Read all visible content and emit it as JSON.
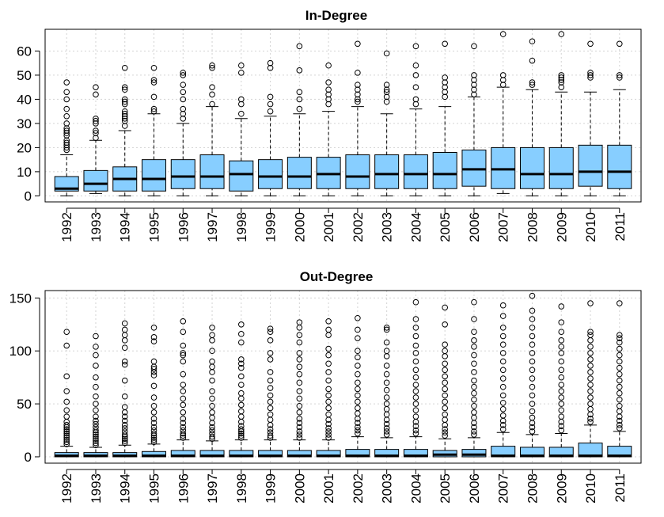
{
  "chart_data": [
    {
      "type": "box",
      "title": "In-Degree",
      "xlabel": "",
      "ylabel": "",
      "categories": [
        "1992",
        "1993",
        "1994",
        "1995",
        "1996",
        "1997",
        "1998",
        "1999",
        "2000",
        "2001",
        "2002",
        "2003",
        "2004",
        "2005",
        "2006",
        "2007",
        "2008",
        "2009",
        "2010",
        "2011"
      ],
      "yticks": [
        0,
        10,
        20,
        30,
        40,
        50,
        60
      ],
      "ylim": [
        -2.5,
        69
      ],
      "grid": true,
      "fill_color": "#87ceff",
      "boxes": [
        {
          "min": 0,
          "q1": 2,
          "median": 3,
          "q3": 8,
          "max": 17,
          "outliers": [
            19,
            20,
            21,
            22,
            23,
            25,
            26,
            27,
            28,
            30,
            33,
            36,
            40,
            43,
            47
          ]
        },
        {
          "min": 1,
          "q1": 2,
          "median": 5,
          "q3": 10.5,
          "max": 23,
          "outliers": [
            24,
            26,
            27,
            30,
            31,
            32,
            42,
            45
          ]
        },
        {
          "min": 0,
          "q1": 2,
          "median": 7,
          "q3": 12,
          "max": 27,
          "outliers": [
            29,
            31,
            32,
            33,
            34,
            35,
            38,
            39,
            40,
            44,
            45,
            53
          ]
        },
        {
          "min": 0,
          "q1": 2,
          "median": 7,
          "q3": 15,
          "max": 34,
          "outliers": [
            35,
            36,
            41,
            47,
            48,
            53
          ]
        },
        {
          "min": 0,
          "q1": 3,
          "median": 8,
          "q3": 15,
          "max": 30,
          "outliers": [
            32,
            34,
            36,
            40,
            43,
            46,
            50,
            51
          ]
        },
        {
          "min": 0,
          "q1": 3,
          "median": 8,
          "q3": 17,
          "max": 37,
          "outliers": [
            38,
            42,
            45,
            53,
            54
          ]
        },
        {
          "min": 0,
          "q1": 2,
          "median": 9,
          "q3": 14.5,
          "max": 32,
          "outliers": [
            34,
            38,
            40,
            51,
            54
          ]
        },
        {
          "min": 0,
          "q1": 3,
          "median": 8,
          "q3": 15,
          "max": 33,
          "outliers": [
            35,
            38,
            41,
            53,
            55
          ]
        },
        {
          "min": 0,
          "q1": 3,
          "median": 8,
          "q3": 16,
          "max": 34,
          "outliers": [
            36,
            40,
            43,
            52,
            62
          ]
        },
        {
          "min": 0,
          "q1": 3,
          "median": 9,
          "q3": 16,
          "max": 35,
          "outliers": [
            38,
            40,
            42,
            44,
            47,
            54
          ]
        },
        {
          "min": 0,
          "q1": 3,
          "median": 8,
          "q3": 17,
          "max": 37,
          "outliers": [
            39,
            40,
            42,
            44,
            46,
            51,
            63
          ]
        },
        {
          "min": 0,
          "q1": 3,
          "median": 9,
          "q3": 17,
          "max": 34,
          "outliers": [
            39,
            41,
            43,
            44,
            46,
            59
          ]
        },
        {
          "min": 0,
          "q1": 3,
          "median": 9,
          "q3": 17,
          "max": 36,
          "outliers": [
            38,
            40,
            45,
            50,
            54,
            62
          ]
        },
        {
          "min": 0,
          "q1": 3,
          "median": 9,
          "q3": 18,
          "max": 37,
          "outliers": [
            41,
            43,
            45,
            47,
            49,
            63
          ]
        },
        {
          "min": 0,
          "q1": 4,
          "median": 11,
          "q3": 19,
          "max": 41,
          "outliers": [
            42,
            44,
            46,
            48,
            50,
            62
          ]
        },
        {
          "min": 1,
          "q1": 3,
          "median": 11,
          "q3": 20,
          "max": 45,
          "outliers": [
            46,
            48,
            50,
            67
          ]
        },
        {
          "min": 0,
          "q1": 3,
          "median": 9,
          "q3": 20,
          "max": 44,
          "outliers": [
            46,
            47,
            56,
            64
          ]
        },
        {
          "min": 0,
          "q1": 3,
          "median": 9,
          "q3": 20,
          "max": 43,
          "outliers": [
            45,
            47,
            48,
            49,
            50,
            67
          ]
        },
        {
          "min": 0,
          "q1": 4,
          "median": 10,
          "q3": 21,
          "max": 43,
          "outliers": [
            49,
            50,
            51,
            63
          ]
        },
        {
          "min": 0,
          "q1": 3,
          "median": 10,
          "q3": 21,
          "max": 44,
          "outliers": [
            49,
            50,
            63
          ]
        }
      ]
    },
    {
      "type": "box",
      "title": "Out-Degree",
      "xlabel": "",
      "ylabel": "",
      "categories": [
        "1992",
        "1993",
        "1994",
        "1995",
        "1996",
        "1997",
        "1998",
        "1999",
        "2000",
        "2001",
        "2002",
        "2003",
        "2004",
        "2005",
        "2006",
        "2007",
        "2008",
        "2009",
        "2010",
        "2011"
      ],
      "yticks": [
        0,
        50,
        100,
        150
      ],
      "ylim": [
        -6,
        157
      ],
      "grid": true,
      "fill_color": "#87ceff",
      "boxes": [
        {
          "min": 0,
          "q1": 0,
          "median": 1,
          "q3": 4,
          "max": 10,
          "outliers": [
            12,
            14,
            16,
            18,
            20,
            22,
            24,
            26,
            28,
            30,
            33,
            38,
            44,
            52,
            62,
            76,
            105,
            118
          ]
        },
        {
          "min": 0,
          "q1": 0,
          "median": 1,
          "q3": 4,
          "max": 9,
          "outliers": [
            11,
            13,
            15,
            17,
            19,
            21,
            23,
            25,
            28,
            31,
            34,
            38,
            44,
            50,
            57,
            66,
            75,
            86,
            96,
            104,
            114
          ]
        },
        {
          "min": 0,
          "q1": 0,
          "median": 1,
          "q3": 4,
          "max": 11,
          "outliers": [
            13,
            15,
            17,
            19,
            21,
            24,
            27,
            30,
            34,
            38,
            42,
            47,
            57,
            72,
            87,
            90,
            103,
            110,
            115,
            120,
            126
          ]
        },
        {
          "min": 0,
          "q1": 0,
          "median": 1,
          "q3": 5,
          "max": 12,
          "outliers": [
            14,
            16,
            18,
            20,
            22,
            25,
            28,
            32,
            36,
            42,
            48,
            56,
            67,
            77,
            80,
            83,
            85,
            90,
            109,
            113,
            122
          ]
        },
        {
          "min": 0,
          "q1": 0,
          "median": 1,
          "q3": 6,
          "max": 16,
          "outliers": [
            18,
            20,
            22,
            25,
            28,
            32,
            36,
            42,
            49,
            55,
            62,
            68,
            78,
            90,
            96,
            98,
            105,
            118,
            128
          ]
        },
        {
          "min": 0,
          "q1": 0,
          "median": 1,
          "q3": 6,
          "max": 15,
          "outliers": [
            17,
            19,
            22,
            25,
            28,
            32,
            37,
            42,
            48,
            55,
            62,
            72,
            80,
            85,
            90,
            100,
            110,
            115,
            122
          ]
        },
        {
          "min": 0,
          "q1": 0,
          "median": 1,
          "q3": 6,
          "max": 16,
          "outliers": [
            18,
            20,
            22,
            24,
            26,
            29,
            33,
            38,
            43,
            49,
            55,
            60,
            68,
            76,
            84,
            88,
            92,
            108,
            116,
            125
          ]
        },
        {
          "min": 0,
          "q1": 0,
          "median": 1,
          "q3": 6,
          "max": 16,
          "outliers": [
            18,
            20,
            23,
            26,
            30,
            35,
            40,
            46,
            52,
            58,
            65,
            72,
            80,
            92,
            98,
            110,
            118,
            121
          ]
        },
        {
          "min": 0,
          "q1": 0,
          "median": 1,
          "q3": 6,
          "max": 16,
          "outliers": [
            18,
            21,
            24,
            28,
            32,
            36,
            42,
            48,
            55,
            62,
            70,
            78,
            85,
            92,
            98,
            108,
            115,
            122,
            127
          ]
        },
        {
          "min": 0,
          "q1": 0,
          "median": 1,
          "q3": 6,
          "max": 16,
          "outliers": [
            18,
            21,
            24,
            27,
            31,
            35,
            40,
            46,
            52,
            58,
            64,
            72,
            80,
            88,
            96,
            102,
            115,
            120,
            128
          ]
        },
        {
          "min": 0,
          "q1": 0,
          "median": 1,
          "q3": 7,
          "max": 19,
          "outliers": [
            22,
            25,
            28,
            32,
            36,
            41,
            46,
            52,
            58,
            64,
            70,
            78,
            86,
            94,
            100,
            112,
            120,
            131
          ]
        },
        {
          "min": 0,
          "q1": 0,
          "median": 1,
          "q3": 7,
          "max": 18,
          "outliers": [
            21,
            24,
            27,
            31,
            35,
            40,
            45,
            50,
            56,
            63,
            70,
            78,
            86,
            95,
            100,
            108,
            120,
            122
          ]
        },
        {
          "min": 0,
          "q1": 0,
          "median": 1,
          "q3": 7,
          "max": 19,
          "outliers": [
            22,
            25,
            29,
            33,
            38,
            44,
            50,
            56,
            62,
            68,
            75,
            82,
            90,
            98,
            105,
            114,
            122,
            130,
            146
          ]
        },
        {
          "min": 0,
          "q1": 0,
          "median": 2,
          "q3": 6,
          "max": 17,
          "outliers": [
            20,
            23,
            26,
            30,
            35,
            40,
            46,
            52,
            58,
            64,
            70,
            76,
            82,
            88,
            95,
            100,
            106,
            125,
            141
          ]
        },
        {
          "min": 0,
          "q1": 0,
          "median": 2,
          "q3": 7,
          "max": 18,
          "outliers": [
            21,
            24,
            28,
            32,
            37,
            42,
            48,
            54,
            60,
            66,
            72,
            80,
            88,
            96,
            104,
            110,
            118,
            130,
            146
          ]
        },
        {
          "min": 0,
          "q1": 0,
          "median": 1,
          "q3": 10,
          "max": 23,
          "outliers": [
            26,
            30,
            34,
            39,
            45,
            51,
            58,
            66,
            74,
            82,
            90,
            98,
            106,
            114,
            122,
            133,
            143
          ]
        },
        {
          "min": 0,
          "q1": 0,
          "median": 1,
          "q3": 9,
          "max": 21,
          "outliers": [
            24,
            28,
            32,
            37,
            43,
            50,
            58,
            66,
            74,
            82,
            90,
            98,
            106,
            114,
            122,
            130,
            138,
            152
          ]
        },
        {
          "min": 0,
          "q1": 0,
          "median": 1,
          "q3": 9,
          "max": 22,
          "outliers": [
            25,
            29,
            33,
            38,
            44,
            50,
            56,
            62,
            68,
            75,
            82,
            90,
            98,
            104,
            110,
            118,
            127,
            142
          ]
        },
        {
          "min": 0,
          "q1": 0,
          "median": 1,
          "q3": 13,
          "max": 30,
          "outliers": [
            33,
            36,
            40,
            45,
            50,
            56,
            62,
            68,
            74,
            80,
            86,
            92,
            98,
            104,
            110,
            115,
            118,
            145
          ]
        },
        {
          "min": 0,
          "q1": 0,
          "median": 1,
          "q3": 10,
          "max": 24,
          "outliers": [
            27,
            30,
            34,
            38,
            43,
            48,
            54,
            60,
            66,
            72,
            78,
            84,
            90,
            96,
            102,
            108,
            112,
            115,
            145
          ]
        }
      ]
    }
  ]
}
